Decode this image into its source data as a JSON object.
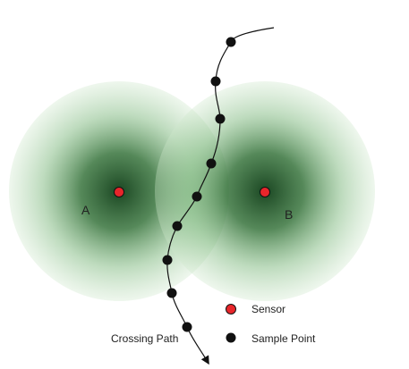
{
  "zones": [
    {
      "id": "A",
      "label": "A"
    },
    {
      "id": "B",
      "label": "B"
    }
  ],
  "path": {
    "label": "Crossing Path",
    "sample_count": 9
  },
  "legend": [
    {
      "label": "Sensor",
      "color": "#e8262b"
    },
    {
      "label": "Sample Point",
      "color": "#111111"
    }
  ],
  "colors": {
    "zone_inner": "#0f3d17",
    "zone_mid": "#3f8a46",
    "zone_outer": "#cfe8cc",
    "path_line": "#111111",
    "sensor": "#e8262b",
    "sample": "#111111"
  }
}
